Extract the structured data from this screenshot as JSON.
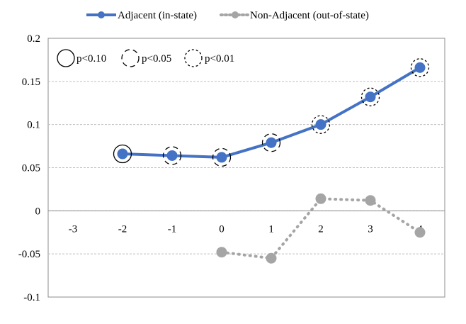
{
  "chart_data": {
    "type": "line",
    "title": "",
    "xlabel": "",
    "ylabel": "",
    "ylim": [
      -0.1,
      0.2
    ],
    "yticks": [
      0.2,
      0.15,
      0.1,
      0.05,
      0,
      -0.05,
      -0.1
    ],
    "ytick_labels": [
      "0.2",
      "0.15",
      "0.1",
      "0.05",
      "0",
      "-0.05",
      "-0.1"
    ],
    "xlim": [
      -3.5,
      4.5
    ],
    "xticks": [
      -3,
      -2,
      -1,
      0,
      1,
      2,
      3,
      4
    ],
    "xtick_labels": [
      "-3",
      "-2",
      "-1",
      "0",
      "1",
      "2",
      "3",
      "4"
    ],
    "grid": true,
    "legend_position": "top",
    "series": [
      {
        "name": "Adjacent (in-state)",
        "color": "#4472C4",
        "style": "solid",
        "x": [
          -2,
          -1,
          0,
          1,
          2,
          3,
          4
        ],
        "y": [
          0.066,
          0.064,
          0.062,
          0.079,
          0.1,
          0.132,
          0.166
        ],
        "significance": [
          "p<0.10",
          "p<0.05",
          "p<0.05",
          "p<0.05",
          "p<0.01",
          "p<0.01",
          "p<0.01"
        ]
      },
      {
        "name": "Non-Adjacent (out-of-state)",
        "color": "#A5A5A5",
        "style": "dotted",
        "x": [
          0,
          1,
          2,
          3,
          4
        ],
        "y": [
          -0.048,
          -0.055,
          0.014,
          0.012,
          -0.025
        ]
      }
    ],
    "significance_legend": [
      {
        "label": "p<0.10",
        "style": "solid"
      },
      {
        "label": "p<0.05",
        "style": "dashed"
      },
      {
        "label": "p<0.01",
        "style": "dotted"
      }
    ]
  }
}
